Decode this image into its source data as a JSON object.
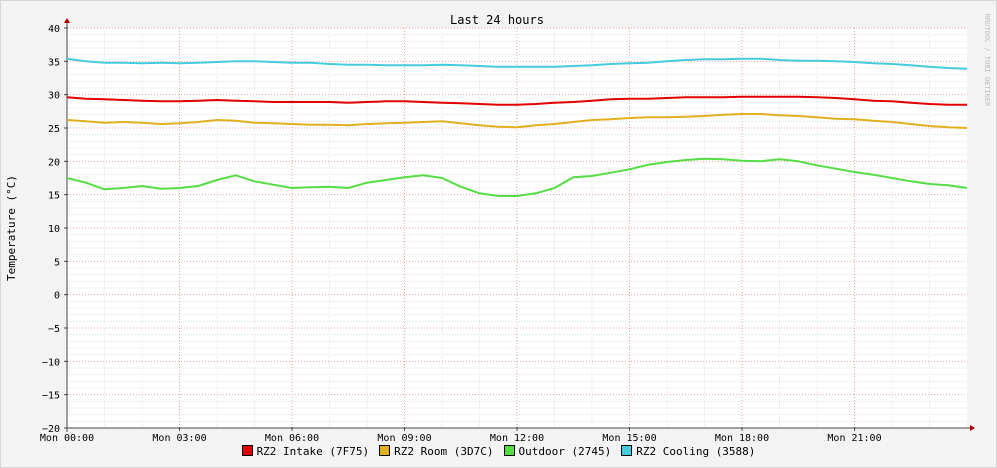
{
  "chart_data": {
    "type": "line",
    "title": "Last 24 hours",
    "ylabel": "Temperature (°C)",
    "watermark": "RRDTOOL / TOBI OETIKER",
    "ylim": [
      -20,
      40
    ],
    "ytick_values": [
      -20,
      -15,
      -10,
      -5,
      0,
      5,
      10,
      15,
      20,
      25,
      30,
      35,
      40
    ],
    "ytick_labels": [
      "−20",
      "−15",
      "−10",
      "−5",
      "0",
      "5",
      "10",
      "15",
      "20",
      "25",
      "30",
      "35",
      "40"
    ],
    "x_unit": "hours since Mon 00:00",
    "xlim": [
      0,
      24
    ],
    "xtick_values": [
      0,
      3,
      6,
      9,
      12,
      15,
      18,
      21
    ],
    "xtick_labels": [
      "Mon 00:00",
      "Mon 03:00",
      "Mon 06:00",
      "Mon 09:00",
      "Mon 12:00",
      "Mon 15:00",
      "Mon 18:00",
      "Mon 21:00"
    ],
    "grid": true,
    "legend_position": "bottom-center",
    "x": [
      0,
      0.5,
      1,
      1.5,
      2,
      2.5,
      3,
      3.5,
      4,
      4.5,
      5,
      5.5,
      6,
      6.5,
      7,
      7.5,
      8,
      8.5,
      9,
      9.5,
      10,
      10.5,
      11,
      11.5,
      12,
      12.5,
      13,
      13.5,
      14,
      14.5,
      15,
      15.5,
      16,
      16.5,
      17,
      17.5,
      18,
      18.5,
      19,
      19.5,
      20,
      20.5,
      21,
      21.5,
      22,
      22.5,
      23,
      23.5,
      24
    ],
    "series": [
      {
        "name": "RZ2 Intake (7F75)",
        "color": "#e00000",
        "values": [
          29.6,
          29.4,
          29.3,
          29.2,
          29.1,
          29.0,
          29.0,
          29.1,
          29.2,
          29.1,
          29.0,
          28.9,
          28.9,
          28.9,
          28.9,
          28.8,
          28.9,
          29.0,
          29.0,
          28.9,
          28.8,
          28.7,
          28.6,
          28.5,
          28.5,
          28.6,
          28.8,
          28.9,
          29.1,
          29.3,
          29.4,
          29.4,
          29.5,
          29.6,
          29.6,
          29.6,
          29.7,
          29.7,
          29.7,
          29.7,
          29.6,
          29.5,
          29.3,
          29.1,
          29.0,
          28.8,
          28.6,
          28.5,
          28.5
        ]
      },
      {
        "name": "RZ2 Room (3D7C)",
        "color": "#e0b020",
        "values": [
          26.2,
          26.0,
          25.8,
          25.9,
          25.8,
          25.6,
          25.7,
          25.9,
          26.2,
          26.1,
          25.8,
          25.7,
          25.6,
          25.5,
          25.5,
          25.4,
          25.6,
          25.7,
          25.8,
          25.9,
          26.0,
          25.7,
          25.4,
          25.2,
          25.1,
          25.4,
          25.6,
          25.9,
          26.2,
          26.3,
          26.5,
          26.6,
          26.6,
          26.7,
          26.8,
          27.0,
          27.1,
          27.1,
          26.9,
          26.8,
          26.6,
          26.4,
          26.3,
          26.1,
          25.9,
          25.6,
          25.3,
          25.1,
          25.0
        ]
      },
      {
        "name": "Outdoor (2745)",
        "color": "#55dd44",
        "values": [
          17.5,
          16.8,
          15.8,
          16.0,
          16.3,
          15.9,
          16.0,
          16.3,
          17.2,
          17.9,
          17.0,
          16.5,
          16.0,
          16.1,
          16.2,
          16.0,
          16.8,
          17.2,
          17.6,
          17.9,
          17.5,
          16.2,
          15.2,
          14.8,
          14.8,
          15.2,
          16.0,
          17.6,
          17.8,
          18.3,
          18.8,
          19.5,
          19.9,
          20.2,
          20.4,
          20.3,
          20.1,
          20.0,
          20.3,
          20.0,
          19.4,
          18.9,
          18.4,
          18.0,
          17.5,
          17.0,
          16.6,
          16.4,
          16.0
        ]
      },
      {
        "name": "RZ2 Cooling (3588)",
        "color": "#44ccdd",
        "values": [
          35.4,
          35.0,
          34.8,
          34.8,
          34.7,
          34.8,
          34.7,
          34.8,
          34.9,
          35.0,
          35.0,
          34.9,
          34.8,
          34.8,
          34.6,
          34.5,
          34.5,
          34.4,
          34.4,
          34.4,
          34.5,
          34.4,
          34.3,
          34.2,
          34.2,
          34.2,
          34.2,
          34.3,
          34.4,
          34.6,
          34.7,
          34.8,
          35.0,
          35.2,
          35.3,
          35.3,
          35.4,
          35.4,
          35.2,
          35.1,
          35.1,
          35.0,
          34.9,
          34.7,
          34.6,
          34.4,
          34.2,
          34.0,
          33.9
        ]
      }
    ]
  }
}
